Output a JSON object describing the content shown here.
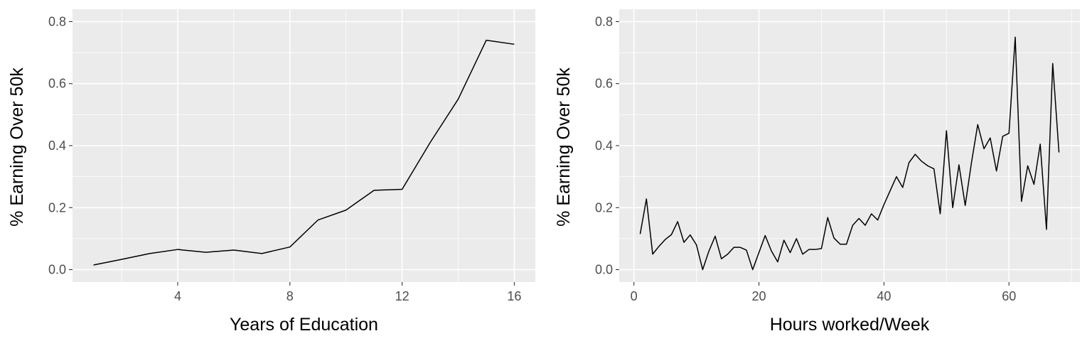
{
  "chart_data": [
    {
      "type": "line",
      "xlabel": "Years of Education",
      "ylabel": "% Earning Over 50k",
      "xlim": [
        1,
        16
      ],
      "ylim": [
        0,
        0.8
      ],
      "xticks": [
        4,
        8,
        12,
        16
      ],
      "yticks": [
        0.0,
        0.2,
        0.4,
        0.6,
        0.8
      ],
      "ytick_labels": [
        "0.0",
        "0.2",
        "0.4",
        "0.6",
        "0.8"
      ],
      "grid": true,
      "x": [
        1,
        2,
        3,
        4,
        5,
        6,
        7,
        8,
        9,
        10,
        11,
        12,
        13,
        14,
        15,
        16
      ],
      "y": [
        0.015,
        0.033,
        0.052,
        0.065,
        0.056,
        0.063,
        0.052,
        0.073,
        0.16,
        0.192,
        0.256,
        0.259,
        0.41,
        0.55,
        0.74,
        0.727
      ]
    },
    {
      "type": "line",
      "xlabel": "Hours worked/Week",
      "ylabel": "% Earning Over 50k",
      "xlim": [
        1,
        68
      ],
      "ylim": [
        0,
        0.8
      ],
      "xticks": [
        0,
        20,
        40,
        60
      ],
      "yticks": [
        0.0,
        0.2,
        0.4,
        0.6,
        0.8
      ],
      "ytick_labels": [
        "0.0",
        "0.2",
        "0.4",
        "0.6",
        "0.8"
      ],
      "grid": true,
      "x": [
        1,
        2,
        3,
        4,
        5,
        6,
        7,
        8,
        9,
        10,
        11,
        12,
        13,
        14,
        15,
        16,
        17,
        18,
        19,
        20,
        21,
        22,
        23,
        24,
        25,
        26,
        27,
        28,
        29,
        30,
        31,
        32,
        33,
        34,
        35,
        36,
        37,
        38,
        39,
        40,
        41,
        42,
        43,
        44,
        45,
        46,
        47,
        48,
        49,
        50,
        51,
        52,
        53,
        54,
        55,
        56,
        57,
        58,
        59,
        60,
        61,
        62,
        63,
        64,
        65,
        66,
        67,
        68
      ],
      "y": [
        0.115,
        0.228,
        0.05,
        0.075,
        0.097,
        0.113,
        0.155,
        0.088,
        0.112,
        0.08,
        0.0,
        0.06,
        0.108,
        0.035,
        0.05,
        0.072,
        0.072,
        0.063,
        0.0,
        0.055,
        0.11,
        0.06,
        0.025,
        0.095,
        0.055,
        0.1,
        0.05,
        0.065,
        0.065,
        0.068,
        0.168,
        0.102,
        0.082,
        0.082,
        0.143,
        0.165,
        0.143,
        0.18,
        0.16,
        0.21,
        0.255,
        0.3,
        0.265,
        0.345,
        0.372,
        0.35,
        0.335,
        0.325,
        0.18,
        0.448,
        0.2,
        0.338,
        0.207,
        0.345,
        0.468,
        0.39,
        0.425,
        0.318,
        0.43,
        0.44,
        0.75,
        0.22,
        0.335,
        0.275,
        0.405,
        0.13,
        0.665,
        0.378
      ]
    }
  ]
}
